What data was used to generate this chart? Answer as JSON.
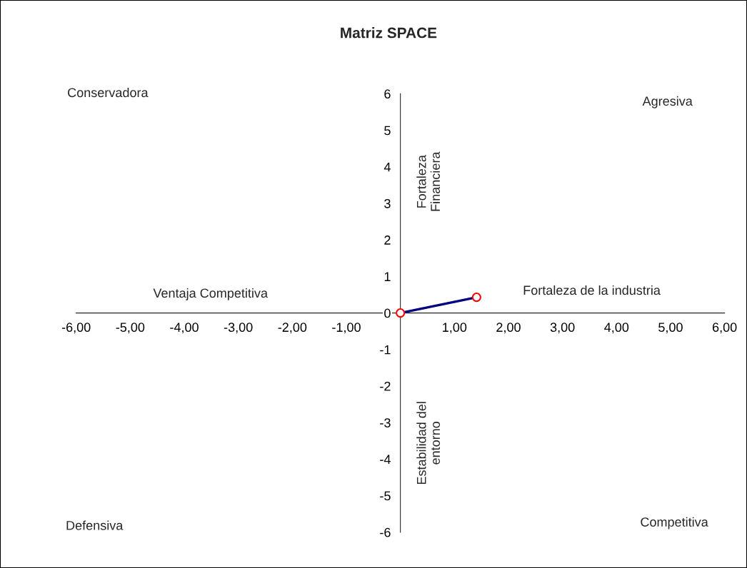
{
  "chart_data": {
    "type": "line",
    "title": "Matriz SPACE",
    "x": [
      0,
      1.41
    ],
    "series": [
      {
        "color": "#000080",
        "values": [
          0,
          0.43
        ]
      }
    ],
    "marker": "circle",
    "xlim": [
      -6,
      6
    ],
    "ylim": [
      -6,
      6
    ],
    "xticks": [
      {
        "value": -6,
        "label": "-6,00"
      },
      {
        "value": -5,
        "label": "-5,00"
      },
      {
        "value": -4,
        "label": "-4,00"
      },
      {
        "value": -3,
        "label": "-3,00"
      },
      {
        "value": -2,
        "label": "-2,00"
      },
      {
        "value": -1,
        "label": "-1,00"
      },
      {
        "value": 0,
        "label": null
      },
      {
        "value": 1,
        "label": "1,00"
      },
      {
        "value": 2,
        "label": "2,00"
      },
      {
        "value": 3,
        "label": "3,00"
      },
      {
        "value": 4,
        "label": "4,00"
      },
      {
        "value": 5,
        "label": "5,00"
      },
      {
        "value": 6,
        "label": "6,00"
      }
    ],
    "yticks": [
      -6,
      -5,
      -4,
      -3,
      -2,
      -1,
      0,
      1,
      2,
      3,
      4,
      5,
      6
    ],
    "annotations": [
      "Conservadora",
      "Agresiva",
      "Defensiva",
      "Competitiva",
      "Ventaja Competitiva",
      "Fortaleza de la industria",
      "Fortaleza\nFinanciera",
      "Estabilidad del\nentorno"
    ]
  }
}
